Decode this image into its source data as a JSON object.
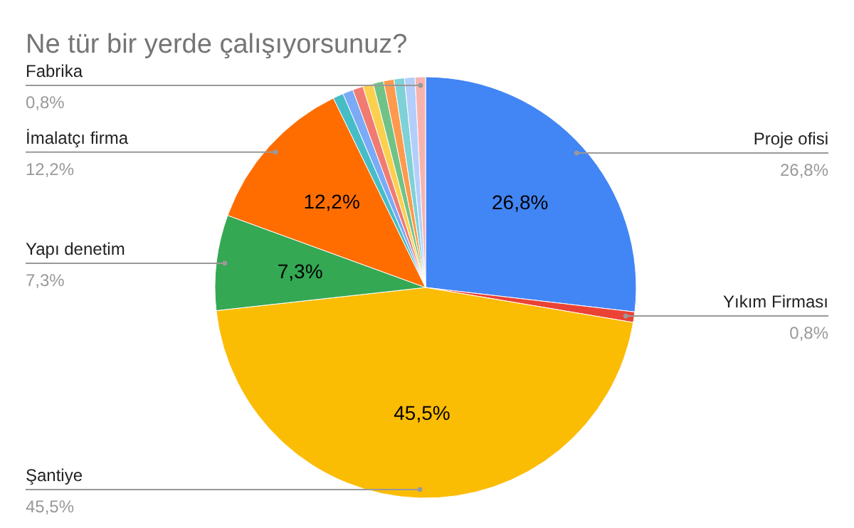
{
  "chart_data": {
    "type": "pie",
    "title": "Ne tür bir yerde çalışıyorsunuz?",
    "categories": [
      "Proje ofisi",
      "Yıkım Firması",
      "Şantiye",
      "Yapı denetim",
      "İmalatçı firma",
      null,
      null,
      null,
      null,
      null,
      null,
      null,
      null,
      "Fabrika"
    ],
    "values": [
      26.8,
      0.8,
      45.5,
      7.3,
      12.2,
      0.8,
      0.8,
      0.8,
      0.8,
      0.8,
      0.8,
      0.8,
      0.8,
      0.8
    ],
    "colors": [
      "#4285f4",
      "#ea4335",
      "#fbbc04",
      "#34a853",
      "#ff6d01",
      "#46bdc6",
      "#7baaf7",
      "#f07b72",
      "#fcd04f",
      "#71c287",
      "#ff994d",
      "#7ed1d7",
      "#b3cefb",
      "#f7b4ae"
    ],
    "value_labels": [
      "26,8%",
      "0,8%",
      "45,5%",
      "7,3%",
      "12,2%",
      null,
      null,
      null,
      null,
      null,
      null,
      null,
      null,
      "0,8%"
    ]
  }
}
